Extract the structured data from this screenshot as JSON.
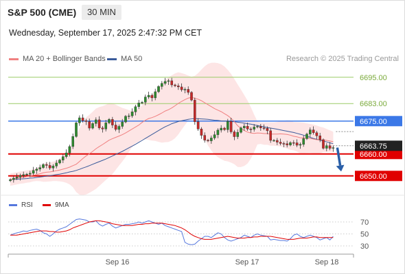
{
  "header": {
    "title": "S&P 500 (CME)",
    "interval": "30 MIN",
    "datetime": "Wednesday, September 17, 2025 2:47:32 PM CET"
  },
  "legend": {
    "ma20": "MA 20 + Bollinger Bands",
    "ma50": "MA 50",
    "credit": "Research © 2025 Trading Central"
  },
  "colors": {
    "ma20": "#f08080",
    "ma50": "#3a5a9a",
    "bollinger_fill": "#fde0e0",
    "resistance_green": "#99cc66",
    "pivot_blue": "#3b78e7",
    "support_red": "#e00000",
    "candle_up": "#2e8b2e",
    "candle_down": "#c62828",
    "current_price_bg": "#222222",
    "arrow": "#2a5fa8",
    "rsi": "#5577dd",
    "rsi_ma": "#e00000"
  },
  "chart_data": [
    {
      "type": "candlestick",
      "y_range": [
        6646.5,
        6699
      ],
      "x_labels": [
        "Sep 16",
        "Sep 17",
        "Sep 18"
      ],
      "levels": [
        {
          "value": 6695.0,
          "label": "6695.00",
          "kind": "resistance"
        },
        {
          "value": 6683.0,
          "label": "6683.00",
          "kind": "resistance"
        },
        {
          "value": 6675.0,
          "label": "6675.00",
          "kind": "pivot"
        },
        {
          "value": 6660.0,
          "label": "6660.00",
          "kind": "support"
        },
        {
          "value": 6650.0,
          "label": "6650.00",
          "kind": "support"
        }
      ],
      "current_price": {
        "value": 6663.75,
        "label": "6663.75"
      },
      "close": [
        6648.3,
        6649.0,
        6649.5,
        6650.2,
        6650.6,
        6650.8,
        6651.2,
        6652.5,
        6653.1,
        6653.8,
        6655.2,
        6654.8,
        6653.6,
        6654.5,
        6655.9,
        6657.2,
        6658.8,
        6660.5,
        6663.4,
        6668.0,
        6674.2,
        6676.5,
        6675.2,
        6674.8,
        6671.8,
        6673.9,
        6675.6,
        6671.9,
        6671.4,
        6674.2,
        6675.8,
        6673.2,
        6671.2,
        6672.6,
        6674.6,
        6677.2,
        6677.4,
        6679.2,
        6681.6,
        6683.3,
        6683.6,
        6686.0,
        6686.8,
        6685.6,
        6688.4,
        6690.8,
        6692.2,
        6693.1,
        6693.4,
        6691.5,
        6691.1,
        6690.6,
        6689.3,
        6689.5,
        6688.1,
        6684.6,
        6674.7,
        6671.4,
        6668.5,
        6666.3,
        6666.0,
        6667.3,
        6668.8,
        6670.9,
        6671.8,
        6671.1,
        6674.9,
        6670.1,
        6667.9,
        6669.9,
        6671.9,
        6672.7,
        6671.4,
        6671.3,
        6672.3,
        6672.6,
        6671.9,
        6671.7,
        6670.6,
        6666.2,
        6666.2,
        6665.4,
        6664.8,
        6664.7,
        6664.1,
        6665.2,
        6665.1,
        6664.0,
        6664.4,
        6667.0,
        6669.1,
        6671.0,
        6669.7,
        6668.3,
        6666.5,
        6662.6,
        6663.8,
        6662.6,
        6662.9
      ],
      "ma20": [
        6648.3,
        6648.6,
        6648.9,
        6649.2,
        6649.4,
        6649.7,
        6649.9,
        6650.3,
        6650.6,
        6651.0,
        6651.4,
        6651.7,
        6651.8,
        6652.1,
        6652.4,
        6652.7,
        6653.1,
        6653.5,
        6654.0,
        6654.7,
        6655.3,
        6656.6,
        6657.9,
        6659.1,
        6660.1,
        6661.2,
        6662.4,
        6663.4,
        6664.3,
        6665.3,
        6666.3,
        6667.0,
        6667.6,
        6668.2,
        6668.8,
        6669.6,
        6670.5,
        6671.4,
        6672.3,
        6673.2,
        6674.4,
        6675.4,
        6676.2,
        6676.6,
        6677.2,
        6677.9,
        6678.7,
        6679.6,
        6680.2,
        6681.0,
        6682.0,
        6683.1,
        6684.0,
        6684.8,
        6685.5,
        6685.8,
        6685.4,
        6685.0,
        6684.3,
        6683.4,
        6682.5,
        6681.6,
        6680.7,
        6680.0,
        6679.3,
        6678.4,
        6677.5,
        6676.3,
        6674.8,
        6672.9,
        6671.7,
        6670.7,
        6670.0,
        6669.6,
        6669.4,
        6669.6,
        6669.5,
        6669.3,
        6669.3,
        6669.1,
        6669.1,
        6669.1,
        6669.2,
        6669.1,
        6668.9,
        6668.6,
        6668.1,
        6667.8,
        6667.4,
        6667.3,
        6667.2,
        6667.1,
        6666.8,
        6666.5,
        6666.4,
        6666.5,
        6666.2,
        6665.9,
        6665.6
      ],
      "ma50": [
        6648.3,
        6648.4,
        6648.5,
        6648.6,
        6648.7,
        6648.8,
        6649.0,
        6649.1,
        6649.3,
        6649.5,
        6649.7,
        6649.9,
        6650.1,
        6650.3,
        6650.6,
        6650.8,
        6651.1,
        6651.4,
        6651.8,
        6652.1,
        6652.5,
        6653.0,
        6653.6,
        6654.1,
        6654.7,
        6655.3,
        6655.9,
        6656.5,
        6657.1,
        6657.7,
        6658.4,
        6659.1,
        6659.8,
        6660.5,
        6661.2,
        6662.0,
        6662.8,
        6663.6,
        6664.4,
        6665.3,
        6666.2,
        6667.1,
        6668.0,
        6668.9,
        6669.8,
        6670.7,
        6671.6,
        6672.4,
        6673.1,
        6673.8,
        6674.3,
        6674.8,
        6675.2,
        6675.5,
        6675.8,
        6676.0,
        6676.1,
        6676.1,
        6676.0,
        6675.9,
        6675.8,
        6675.6,
        6675.4,
        6675.3,
        6675.1,
        6675.0,
        6674.9,
        6674.8,
        6674.7,
        6674.5,
        6674.3,
        6674.1,
        6673.8,
        6673.6,
        6673.3,
        6673.0,
        6672.7,
        6672.4,
        6672.1,
        6671.8,
        6671.6,
        6671.3,
        6671.0,
        6670.7,
        6670.4,
        6670.1,
        6669.8,
        6669.4,
        6669.0,
        6668.6,
        6668.1,
        6667.6,
        6667.1,
        6666.7,
        6666.3,
        6665.9,
        6665.5,
        6665.1,
        6664.7
      ],
      "projection": {
        "from": 6662.9,
        "to": 6652.0
      }
    },
    {
      "type": "line",
      "name": "RSI",
      "y_ticks": [
        30,
        50,
        70
      ],
      "series": [
        {
          "name": "RSI",
          "values": [
            48,
            50,
            52,
            53,
            55,
            54,
            56,
            57,
            58,
            56,
            52,
            50,
            46,
            50,
            55,
            58,
            60,
            62,
            66,
            70,
            74,
            75,
            74,
            73,
            70,
            70,
            72,
            66,
            63,
            66,
            68,
            63,
            60,
            62,
            64,
            66,
            66,
            67,
            68,
            70,
            68,
            70,
            72,
            70,
            68,
            66,
            68,
            64,
            62,
            60,
            58,
            56,
            54,
            36,
            33,
            32,
            33,
            38,
            42,
            46,
            46,
            44,
            48,
            52,
            50,
            44,
            40,
            38,
            40,
            42,
            44,
            48,
            46,
            44,
            48,
            50,
            48,
            47,
            46,
            40,
            41,
            40,
            39,
            39,
            38,
            42,
            48,
            50,
            46,
            44,
            46,
            48,
            46,
            44,
            40,
            42,
            44,
            40,
            46
          ]
        },
        {
          "name": "9MA",
          "values": [
            48,
            48,
            48,
            49,
            50,
            51,
            52,
            53,
            54,
            55,
            55,
            55,
            54,
            54,
            53,
            53,
            54,
            55,
            57,
            60,
            62,
            64,
            66,
            68,
            70,
            71,
            72,
            72,
            71,
            70,
            69,
            67,
            66,
            65,
            64,
            64,
            64,
            64,
            65,
            66,
            66,
            67,
            67,
            68,
            68,
            68,
            68,
            67,
            66,
            65,
            64,
            62,
            60,
            57,
            53,
            49,
            46,
            44,
            42,
            41,
            41,
            41,
            42,
            43,
            44,
            45,
            46,
            45,
            44,
            43,
            43,
            43,
            44,
            44,
            45,
            45,
            46,
            46,
            46,
            46,
            45,
            44,
            43,
            42,
            41,
            41,
            41,
            42,
            43,
            43,
            43,
            44,
            45,
            45,
            44,
            44,
            44,
            44,
            44
          ]
        }
      ]
    }
  ]
}
